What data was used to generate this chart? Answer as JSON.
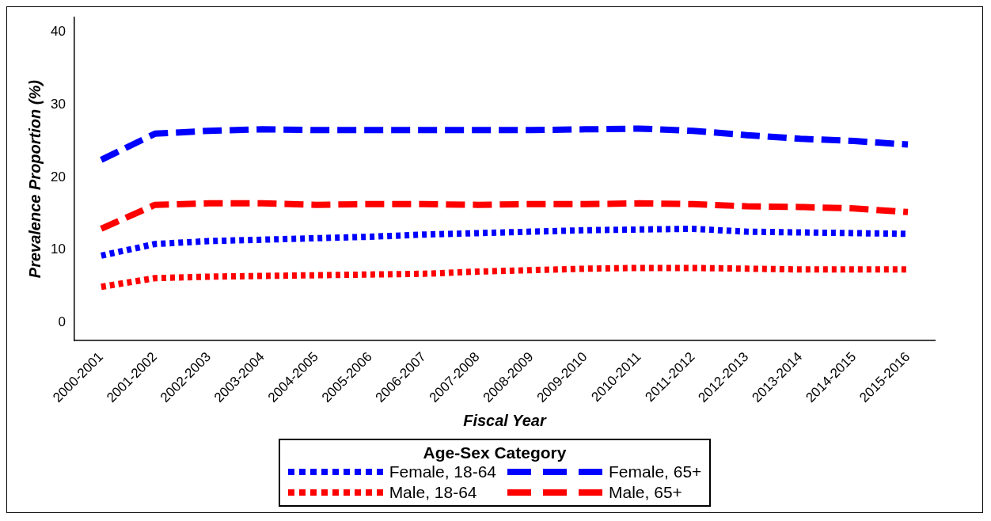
{
  "chart_data": {
    "type": "line",
    "xlabel": "Fiscal Year",
    "ylabel": "Prevalence Proportion (%)",
    "legend_title": "Age-Sex Category",
    "categories": [
      "2000-2001",
      "2001-2002",
      "2002-2003",
      "2003-2004",
      "2004-2005",
      "2005-2006",
      "2006-2007",
      "2007-2008",
      "2008-2009",
      "2009-2010",
      "2010-2011",
      "2011-2012",
      "2012-2013",
      "2013-2014",
      "2014-2015",
      "2015-2016"
    ],
    "series": [
      {
        "name": "Female, 18-64",
        "color": "#0000ff",
        "line_style": "dotted",
        "values": [
          9.2,
          10.8,
          11.2,
          11.4,
          11.6,
          11.8,
          12.1,
          12.3,
          12.5,
          12.7,
          12.8,
          12.9,
          12.5,
          12.4,
          12.3,
          12.2
        ]
      },
      {
        "name": "Female, 65+",
        "color": "#0000ff",
        "line_style": "dashed",
        "values": [
          22.4,
          26.0,
          26.4,
          26.6,
          26.5,
          26.5,
          26.5,
          26.5,
          26.5,
          26.6,
          26.7,
          26.4,
          25.8,
          25.3,
          25.0,
          24.5
        ]
      },
      {
        "name": "Male, 18-64",
        "color": "#ff0000",
        "line_style": "dotted",
        "values": [
          4.9,
          6.1,
          6.3,
          6.4,
          6.5,
          6.6,
          6.7,
          7.0,
          7.2,
          7.4,
          7.5,
          7.5,
          7.4,
          7.3,
          7.3,
          7.3
        ]
      },
      {
        "name": "Male, 65+",
        "color": "#ff0000",
        "line_style": "dashed",
        "values": [
          12.9,
          16.2,
          16.4,
          16.4,
          16.2,
          16.3,
          16.3,
          16.2,
          16.3,
          16.3,
          16.4,
          16.3,
          16.0,
          15.9,
          15.7,
          15.2
        ]
      }
    ],
    "ylim": [
      -2.5,
      42
    ],
    "yticks": [
      0,
      10,
      20,
      30,
      40
    ],
    "grid": false,
    "legend": "bottom",
    "marker": "none"
  }
}
